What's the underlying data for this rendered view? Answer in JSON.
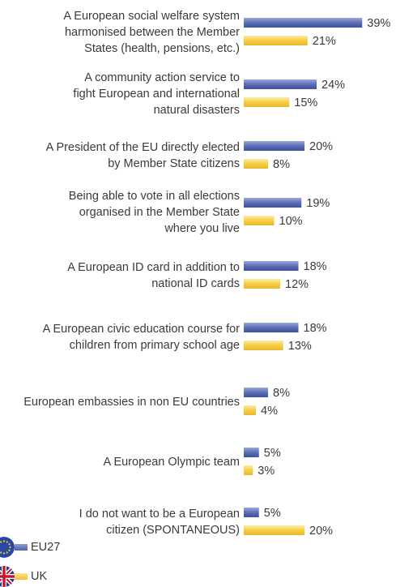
{
  "chart_data": {
    "type": "bar",
    "orientation": "horizontal",
    "categories": [
      "A European social welfare system harmonised between the Member States (health, pensions, etc.)",
      "A community action service to fight European and international natural disasters",
      "A President of the EU directly elected by Member State citizens",
      "Being able to vote in all elections organised in the Member State where you live",
      "A European ID card in addition to national ID cards",
      "A European civic education course for children from primary school age",
      "European embassies in non EU countries",
      "A European Olympic team",
      "I do not want to be a European citizen (SPONTANEOUS)"
    ],
    "category_lines": [
      [
        "A European social welfare system",
        "harmonised between the Member",
        "States (health, pensions, etc.)"
      ],
      [
        "A community action service to",
        "fight European and international",
        "natural disasters"
      ],
      [
        "A President of the EU directly elected",
        "by Member State citizens"
      ],
      [
        "Being able to vote in all elections",
        "organised in the Member State",
        "where you live"
      ],
      [
        "A European ID card in addition to",
        "national ID cards"
      ],
      [
        "A European civic education course for",
        "children from primary school age"
      ],
      [
        "European embassies in non EU countries"
      ],
      [
        "A European Olympic team"
      ],
      [
        "I do not want to be a European",
        "citizen (SPONTANEOUS)"
      ]
    ],
    "series": [
      {
        "name": "EU27",
        "values": [
          39,
          24,
          20,
          19,
          18,
          18,
          8,
          5,
          5
        ],
        "color": "#5b6fb5"
      },
      {
        "name": "UK",
        "values": [
          21,
          15,
          8,
          10,
          12,
          13,
          4,
          3,
          20
        ],
        "color": "#f5cd45"
      }
    ],
    "value_suffix": "%",
    "xlim": [
      0,
      40
    ],
    "grid": false,
    "legend_position": "bottom-left"
  }
}
